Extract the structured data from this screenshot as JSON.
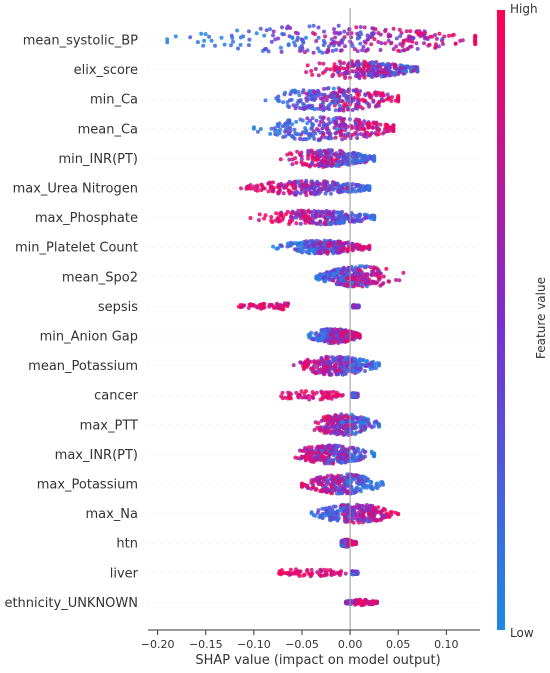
{
  "chart_data": {
    "type": "scatter",
    "subtype": "shap-beeswarm-summary",
    "title": "",
    "xlabel": "SHAP value (impact on model output)",
    "ylabel": "",
    "xlim": [
      -0.21,
      0.135
    ],
    "xticks": [
      -0.2,
      -0.15,
      -0.1,
      -0.05,
      0.0,
      0.05,
      0.1
    ],
    "xtick_labels": [
      "−0.20",
      "−0.15",
      "−0.10",
      "−0.05",
      "0.00",
      "0.05",
      "0.10"
    ],
    "grid": false,
    "zero_line": true,
    "colorbar": {
      "label": "Feature value",
      "high_label": "High",
      "low_label": "Low",
      "colors": [
        "#1E88E5",
        "#7B2FD0",
        "#FF0052"
      ]
    },
    "features": [
      {
        "name": "mean_systolic_BP",
        "min": -0.19,
        "max": 0.13,
        "low_center": -0.1,
        "high_center": 0.1,
        "spread": 1.0,
        "style": "gradient"
      },
      {
        "name": "elix_score",
        "min": -0.07,
        "max": 0.07,
        "low_center": 0.045,
        "high_center": 0.005,
        "spread": 0.55,
        "style": "gradient"
      },
      {
        "name": "min_Ca",
        "min": -0.09,
        "max": 0.05,
        "low_center": -0.05,
        "high_center": 0.025,
        "spread": 0.8,
        "style": "gradient"
      },
      {
        "name": "mean_Ca",
        "min": -0.1,
        "max": 0.045,
        "low_center": -0.06,
        "high_center": 0.03,
        "spread": 0.8,
        "style": "gradient"
      },
      {
        "name": "min_INR(PT)",
        "min": -0.085,
        "max": 0.025,
        "low_center": 0.01,
        "high_center": -0.04,
        "spread": 0.55,
        "style": "gradient"
      },
      {
        "name": "max_Urea Nitrogen",
        "min": -0.115,
        "max": 0.02,
        "low_center": 0.01,
        "high_center": -0.08,
        "spread": 0.45,
        "style": "split"
      },
      {
        "name": "max_Phosphate",
        "min": -0.105,
        "max": 0.025,
        "low_center": 0.01,
        "high_center": -0.06,
        "spread": 0.45,
        "style": "split"
      },
      {
        "name": "min_Platelet Count",
        "min": -0.08,
        "max": 0.02,
        "low_center": -0.05,
        "high_center": 0.005,
        "spread": 0.4,
        "style": "split"
      },
      {
        "name": "mean_Spo2",
        "min": -0.035,
        "max": 0.06,
        "low_center": -0.015,
        "high_center": 0.02,
        "spread": 0.7,
        "style": "gradient"
      },
      {
        "name": "sepsis",
        "min": -0.13,
        "max": 0.01,
        "low_center": 0.006,
        "high_center": -0.09,
        "spread": 0.3,
        "style": "binary"
      },
      {
        "name": "min_Anion Gap",
        "min": -0.045,
        "max": 0.01,
        "low_center": -0.03,
        "high_center": 0.002,
        "spread": 0.45,
        "style": "split"
      },
      {
        "name": "mean_Potassium",
        "min": -0.06,
        "max": 0.03,
        "low_center": 0.01,
        "high_center": -0.035,
        "spread": 0.6,
        "style": "gradient"
      },
      {
        "name": "cancer",
        "min": -0.09,
        "max": 0.012,
        "low_center": 0.005,
        "high_center": -0.04,
        "spread": 0.45,
        "style": "binary"
      },
      {
        "name": "max_PTT",
        "min": -0.045,
        "max": 0.03,
        "low_center": 0.01,
        "high_center": -0.02,
        "spread": 0.7,
        "style": "gradient"
      },
      {
        "name": "max_INR(PT)",
        "min": -0.065,
        "max": 0.025,
        "low_center": 0.005,
        "high_center": -0.04,
        "spread": 0.6,
        "style": "gradient"
      },
      {
        "name": "max_Potassium",
        "min": -0.05,
        "max": 0.035,
        "low_center": 0.01,
        "high_center": -0.03,
        "spread": 0.65,
        "style": "gradient"
      },
      {
        "name": "max_Na",
        "min": -0.04,
        "max": 0.05,
        "low_center": -0.02,
        "high_center": 0.03,
        "spread": 0.6,
        "style": "gradient"
      },
      {
        "name": "htn",
        "min": -0.012,
        "max": 0.006,
        "low_center": -0.006,
        "high_center": 0.004,
        "spread": 0.35,
        "style": "binary"
      },
      {
        "name": "liver",
        "min": -0.095,
        "max": 0.01,
        "low_center": 0.005,
        "high_center": -0.04,
        "spread": 0.35,
        "style": "binary"
      },
      {
        "name": "ethnicity_UNKNOWN",
        "min": -0.004,
        "max": 0.028,
        "low_center": -0.002,
        "high_center": 0.018,
        "spread": 0.25,
        "style": "binary"
      }
    ]
  }
}
